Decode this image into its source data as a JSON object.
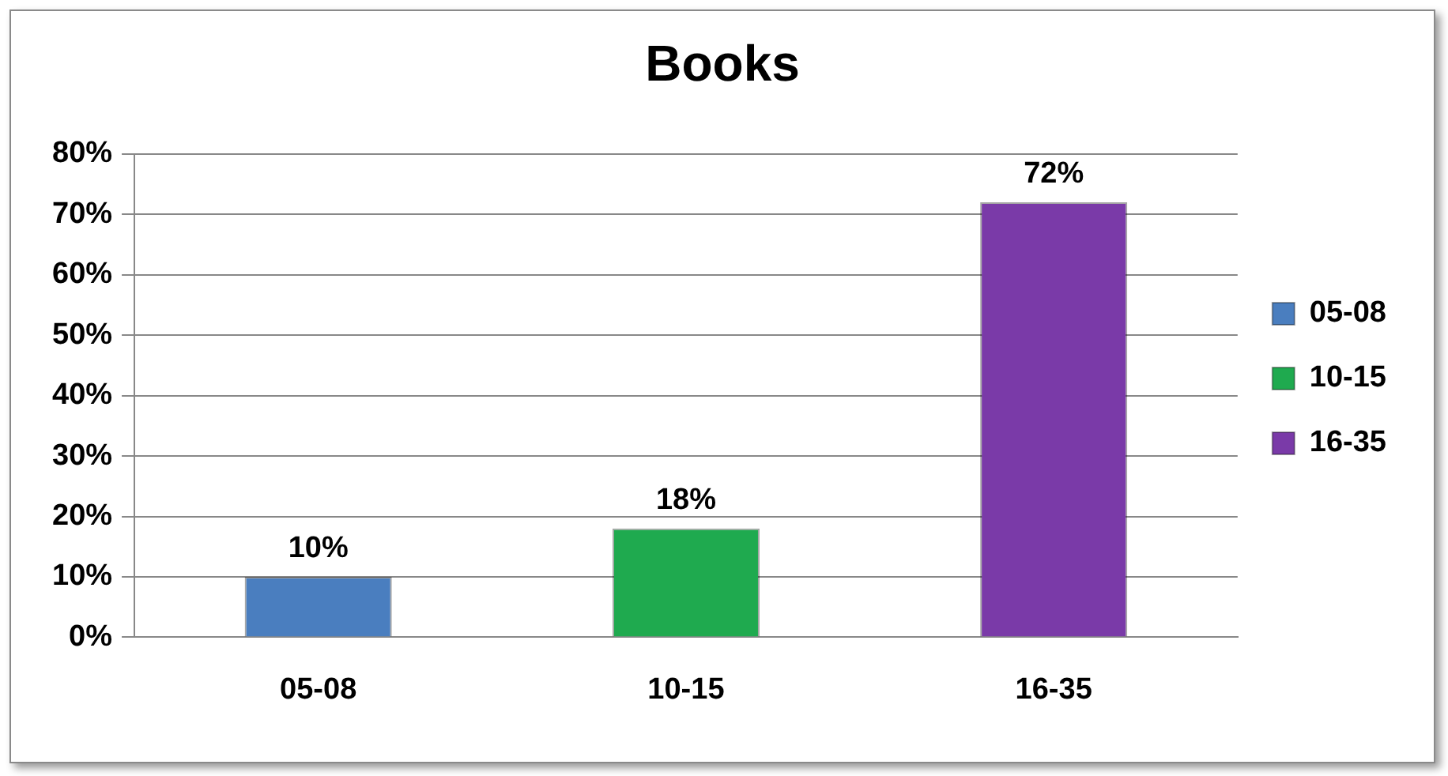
{
  "chart_data": {
    "type": "bar",
    "title": "Books",
    "categories": [
      "05-08",
      "10-15",
      "16-35"
    ],
    "series": [
      {
        "name": "05-08",
        "color": "#4a7ebf",
        "values": [
          10,
          null,
          null
        ],
        "value_labels": [
          "10%",
          null,
          null
        ]
      },
      {
        "name": "10-15",
        "color": "#1faa4f",
        "values": [
          null,
          18,
          null
        ],
        "value_labels": [
          null,
          "18%",
          null
        ]
      },
      {
        "name": "16-35",
        "color": "#7a3aa8",
        "values": [
          null,
          null,
          72
        ],
        "value_labels": [
          null,
          null,
          "72%"
        ]
      }
    ],
    "ylim": [
      0,
      80
    ],
    "yticks": [
      {
        "value": 0,
        "label": "0%"
      },
      {
        "value": 10,
        "label": "10%"
      },
      {
        "value": 20,
        "label": "20%"
      },
      {
        "value": 30,
        "label": "30%"
      },
      {
        "value": 40,
        "label": "40%"
      },
      {
        "value": 50,
        "label": "50%"
      },
      {
        "value": 60,
        "label": "60%"
      },
      {
        "value": 70,
        "label": "70%"
      },
      {
        "value": 80,
        "label": "80%"
      }
    ],
    "grid": "y",
    "legend": "right"
  }
}
